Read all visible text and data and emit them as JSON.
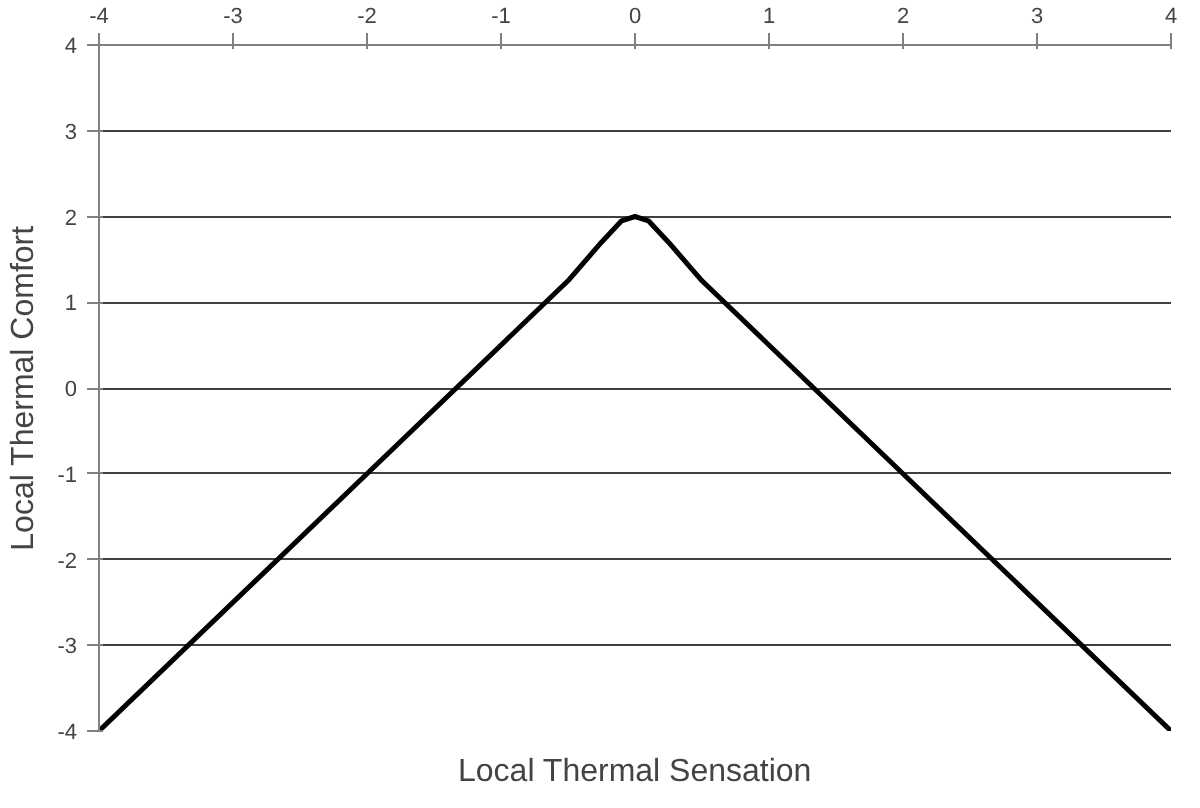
{
  "chart_data": {
    "type": "line",
    "xlabel": "Local Thermal Sensation",
    "ylabel": "Local Thermal Comfort",
    "x": [
      -4,
      -2,
      -0.5,
      -0.25,
      -0.1,
      0,
      0.1,
      0.25,
      0.5,
      2,
      4
    ],
    "series": [
      {
        "color": "#000000",
        "values": [
          -4,
          -1,
          1.25,
          1.7,
          1.95,
          2,
          1.95,
          1.7,
          1.25,
          -1,
          -4
        ]
      }
    ],
    "xlim": [
      -4,
      4
    ],
    "ylim": [
      -4,
      4
    ],
    "xticks": [
      -4,
      -3,
      -2,
      -1,
      0,
      1,
      2,
      3,
      4
    ],
    "yticks": [
      -4,
      -3,
      -2,
      -1,
      0,
      1,
      2,
      3,
      4
    ],
    "grid": "y",
    "marker": "none",
    "line_style": "solid"
  }
}
